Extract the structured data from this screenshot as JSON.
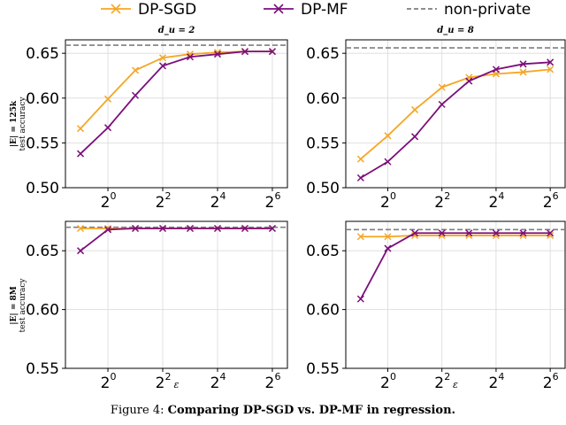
{
  "legend": {
    "position": "top-center",
    "entries": [
      {
        "label": "DP-SGD",
        "color": "#f5a623",
        "marker": "x"
      },
      {
        "label": "DP-MF",
        "color": "#7b0f7b",
        "marker": "x"
      },
      {
        "label": "non-private",
        "color": "#7f7f7f",
        "style": "dashed"
      }
    ]
  },
  "caption": {
    "prefix": "Figure 4: ",
    "bold": "Comparing DP-SGD vs. DP-MF in regression."
  },
  "row_labels": [
    {
      "line1": "|E| = 125k",
      "line2": "test accuracy"
    },
    {
      "line1": "|E| = 8M",
      "line2": "test accuracy"
    }
  ],
  "col_titles": [
    "d_u = 2",
    "d_u = 8"
  ],
  "xlabel": "ε",
  "chart_data": [
    {
      "type": "line",
      "title": "d_u = 2",
      "row": 0,
      "col": 0,
      "x_log2": [
        -1,
        0,
        1,
        2,
        3,
        4,
        5,
        6
      ],
      "xticks": [
        {
          "exp": 0,
          "label": "2",
          "sup": "0"
        },
        {
          "exp": 2,
          "label": "2",
          "sup": "2"
        },
        {
          "exp": 4,
          "label": "2",
          "sup": "4"
        },
        {
          "exp": 6,
          "label": "2",
          "sup": "6"
        }
      ],
      "yticks": [
        "0.50",
        "0.55",
        "0.60",
        "0.65"
      ],
      "ylim": [
        0.5,
        0.665
      ],
      "series": [
        {
          "name": "DP-SGD",
          "values": [
            0.566,
            0.599,
            0.631,
            0.645,
            0.649,
            0.651,
            0.652,
            0.652
          ]
        },
        {
          "name": "DP-MF",
          "values": [
            0.538,
            0.567,
            0.603,
            0.636,
            0.646,
            0.649,
            0.652,
            0.652
          ]
        }
      ],
      "non_private": 0.659
    },
    {
      "type": "line",
      "title": "d_u = 8",
      "row": 0,
      "col": 1,
      "x_log2": [
        -1,
        0,
        1,
        2,
        3,
        4,
        5,
        6
      ],
      "xticks": [
        {
          "exp": 0,
          "label": "2",
          "sup": "0"
        },
        {
          "exp": 2,
          "label": "2",
          "sup": "2"
        },
        {
          "exp": 4,
          "label": "2",
          "sup": "4"
        },
        {
          "exp": 6,
          "label": "2",
          "sup": "6"
        }
      ],
      "yticks": [
        "0.50",
        "0.55",
        "0.60",
        "0.65"
      ],
      "ylim": [
        0.5,
        0.665
      ],
      "series": [
        {
          "name": "DP-SGD",
          "values": [
            0.532,
            0.558,
            0.587,
            0.612,
            0.623,
            0.627,
            0.629,
            0.632
          ]
        },
        {
          "name": "DP-MF",
          "values": [
            0.511,
            0.529,
            0.557,
            0.593,
            0.619,
            0.632,
            0.638,
            0.64
          ]
        }
      ],
      "non_private": 0.656
    },
    {
      "type": "line",
      "title": "",
      "row": 1,
      "col": 0,
      "x_log2": [
        -1,
        0,
        1,
        2,
        3,
        4,
        5,
        6
      ],
      "xticks": [
        {
          "exp": 0,
          "label": "2",
          "sup": "0"
        },
        {
          "exp": 2,
          "label": "2",
          "sup": "2"
        },
        {
          "exp": 4,
          "label": "2",
          "sup": "4"
        },
        {
          "exp": 6,
          "label": "2",
          "sup": "6"
        }
      ],
      "yticks": [
        "0.55",
        "0.60",
        "0.65"
      ],
      "ylim": [
        0.55,
        0.675
      ],
      "series": [
        {
          "name": "DP-SGD",
          "values": [
            0.669,
            0.669,
            0.669,
            0.669,
            0.669,
            0.669,
            0.669,
            0.669
          ]
        },
        {
          "name": "DP-MF",
          "values": [
            0.65,
            0.668,
            0.669,
            0.669,
            0.669,
            0.669,
            0.669,
            0.669
          ]
        }
      ],
      "non_private": 0.67
    },
    {
      "type": "line",
      "title": "",
      "row": 1,
      "col": 1,
      "x_log2": [
        -1,
        0,
        1,
        2,
        3,
        4,
        5,
        6
      ],
      "xticks": [
        {
          "exp": 0,
          "label": "2",
          "sup": "0"
        },
        {
          "exp": 2,
          "label": "2",
          "sup": "2"
        },
        {
          "exp": 4,
          "label": "2",
          "sup": "4"
        },
        {
          "exp": 6,
          "label": "2",
          "sup": "6"
        }
      ],
      "yticks": [
        "0.55",
        "0.60",
        "0.65"
      ],
      "ylim": [
        0.55,
        0.675
      ],
      "series": [
        {
          "name": "DP-SGD",
          "values": [
            0.662,
            0.662,
            0.663,
            0.663,
            0.663,
            0.663,
            0.663,
            0.663
          ]
        },
        {
          "name": "DP-MF",
          "values": [
            0.609,
            0.652,
            0.665,
            0.665,
            0.665,
            0.665,
            0.665,
            0.665
          ]
        }
      ],
      "non_private": 0.668
    }
  ]
}
